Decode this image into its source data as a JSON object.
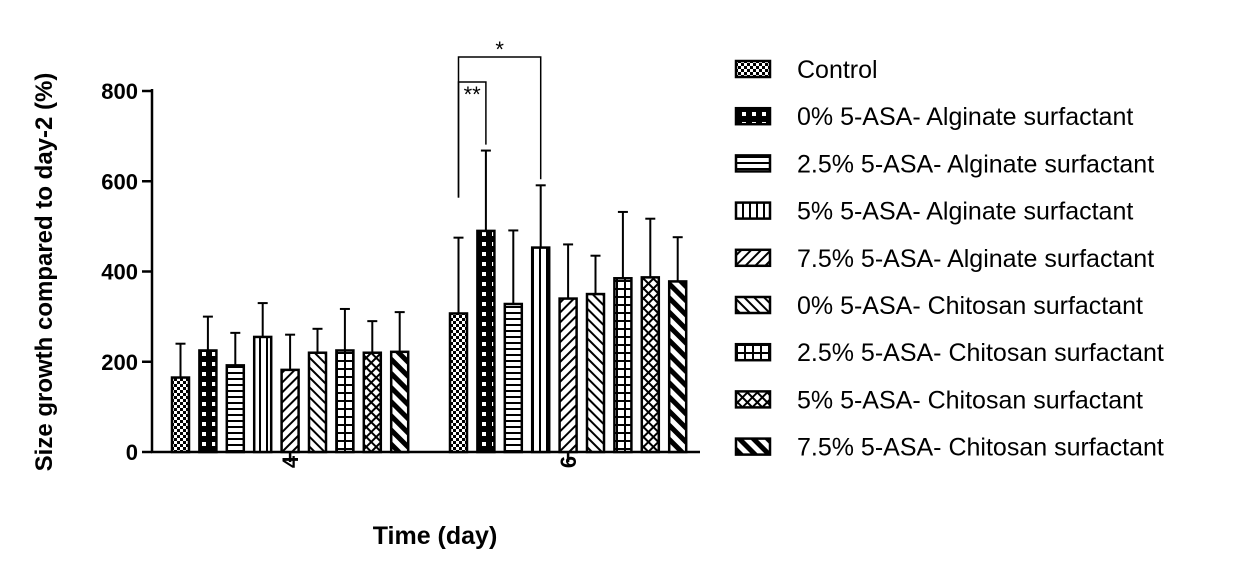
{
  "chart_data": {
    "type": "bar",
    "title": "",
    "xlabel": "Time (day)",
    "ylabel": "Size growth compared to day-2 (%)",
    "ylim": [
      0,
      800
    ],
    "yticks": [
      0,
      200,
      400,
      600,
      800
    ],
    "categories": [
      "4",
      "6"
    ],
    "series": [
      {
        "name": "Control",
        "values": [
          165,
          307
        ],
        "errors": [
          75,
          168
        ],
        "pattern": "checker-fine"
      },
      {
        "name": "0% 5-ASA- Alginate surfactant",
        "values": [
          225,
          490
        ],
        "errors": [
          75,
          178
        ],
        "pattern": "checker-big"
      },
      {
        "name": "2.5% 5-ASA- Alginate surfactant",
        "values": [
          192,
          328
        ],
        "errors": [
          72,
          163
        ],
        "pattern": "hlines"
      },
      {
        "name": "5% 5-ASA- Alginate surfactant",
        "values": [
          255,
          453
        ],
        "errors": [
          75,
          138
        ],
        "pattern": "vlines"
      },
      {
        "name": "7.5% 5-ASA- Alginate surfactant",
        "values": [
          182,
          340
        ],
        "errors": [
          78,
          120
        ],
        "pattern": "diag-up"
      },
      {
        "name": "0% 5-ASA- Chitosan surfactant",
        "values": [
          220,
          350
        ],
        "errors": [
          53,
          85
        ],
        "pattern": "diag-down"
      },
      {
        "name": "2.5% 5-ASA- Chitosan surfactant",
        "values": [
          225,
          385
        ],
        "errors": [
          92,
          147
        ],
        "pattern": "grid"
      },
      {
        "name": "5% 5-ASA- Chitosan surfactant",
        "values": [
          220,
          387
        ],
        "errors": [
          70,
          130
        ],
        "pattern": "crosshatch"
      },
      {
        "name": "7.5% 5-ASA- Chitosan surfactant",
        "values": [
          222,
          378
        ],
        "errors": [
          88,
          98
        ],
        "pattern": "diag-thick"
      }
    ],
    "significance": [
      {
        "label": "**",
        "category": "6",
        "from_series": 0,
        "to_series": 1
      },
      {
        "label": "*",
        "category": "6",
        "from_series": 0,
        "to_series": 3
      }
    ],
    "legend_position": "right"
  }
}
